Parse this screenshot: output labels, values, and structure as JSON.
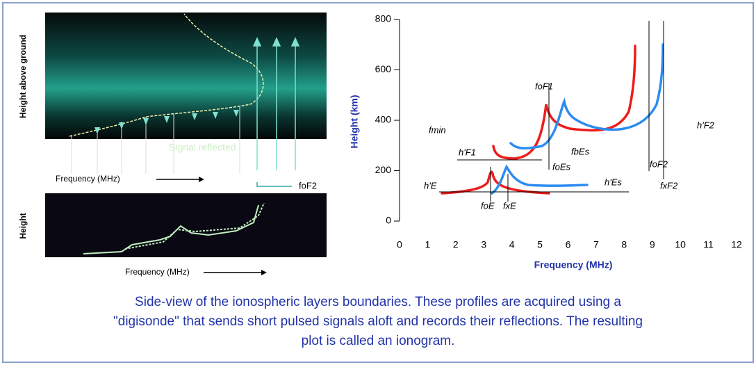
{
  "left_top": {
    "y_label": "Height above ground",
    "x_label": "Frequency (MHz)",
    "annotation": "Signal reflected",
    "arrow_label": "foF2"
  },
  "left_bottom": {
    "y_label": "Height",
    "x_label": "Frequency (MHz)"
  },
  "ionogram": {
    "y_label": "Height (km)",
    "x_label": "Frequency (MHz)",
    "xlim": [
      0,
      12
    ],
    "xticks": [
      0,
      1,
      2,
      3,
      4,
      5,
      6,
      7,
      8,
      9,
      10,
      11,
      12
    ],
    "ylim": [
      0,
      800
    ],
    "yticks": [
      0,
      200,
      400,
      600,
      800
    ],
    "annotations": [
      "fmin",
      "h'F1",
      "foF1",
      "fbEs",
      "foEs",
      "foF2",
      "fxF2",
      "h'F2",
      "h'E",
      "h'Es",
      "foE",
      "fxE"
    ]
  },
  "caption": [
    "Side-view of the ionospheric layers boundaries. These profiles are acquired using a",
    "\"digisonde\" that sends short pulsed signals aloft and records their reflections. The resulting",
    "plot is called an ionogram."
  ]
}
